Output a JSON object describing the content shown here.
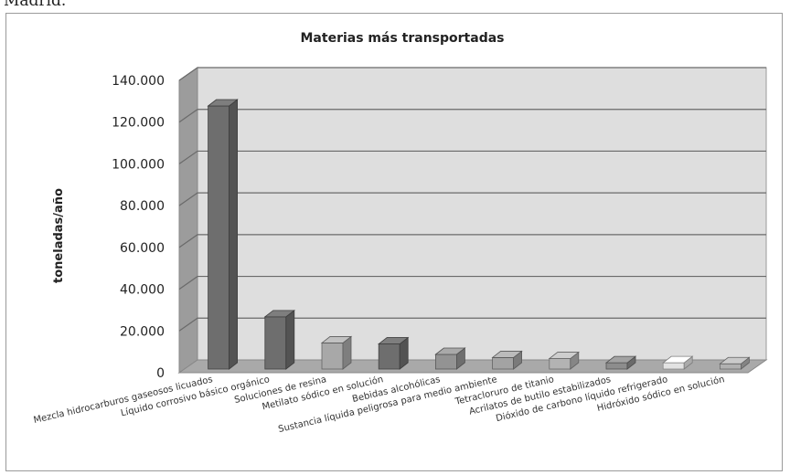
{
  "top_fragment": "Madrid.",
  "chart_data": {
    "type": "bar",
    "title": "Materias más transportadas",
    "xlabel": "",
    "ylabel": "toneladas/año",
    "ylim": [
      0,
      140000
    ],
    "yticks": [
      "0",
      "20.000",
      "40.000",
      "60.000",
      "80.000",
      "100.000",
      "120.000",
      "140.000"
    ],
    "grid": true,
    "style": "3d-column",
    "categories": [
      "Mezcla hidrocarburos gaseosos licuados",
      "Líquido corrosivo básico orgánico",
      "Soluciones de resina",
      "Metilato sódico en solución",
      "Bebidas alcohólicas",
      "Sustancia líquida peligrosa para  medio ambiente",
      "Tetracloruro de titanio",
      "Acrilatos de butilo estabilizados",
      "Dióxido de carbono líquido refrigerado",
      "Hidróxido sódico en solución"
    ],
    "values": [
      126000,
      25000,
      12500,
      12000,
      7000,
      5500,
      5000,
      3000,
      3000,
      2500
    ],
    "colors": [
      "#6e6e6e",
      "#6e6e6e",
      "#a8a8a8",
      "#6e6e6e",
      "#939393",
      "#a3a3a3",
      "#b3b3b3",
      "#8d8d8d",
      "#e2e2e2",
      "#b0b0b0"
    ]
  }
}
